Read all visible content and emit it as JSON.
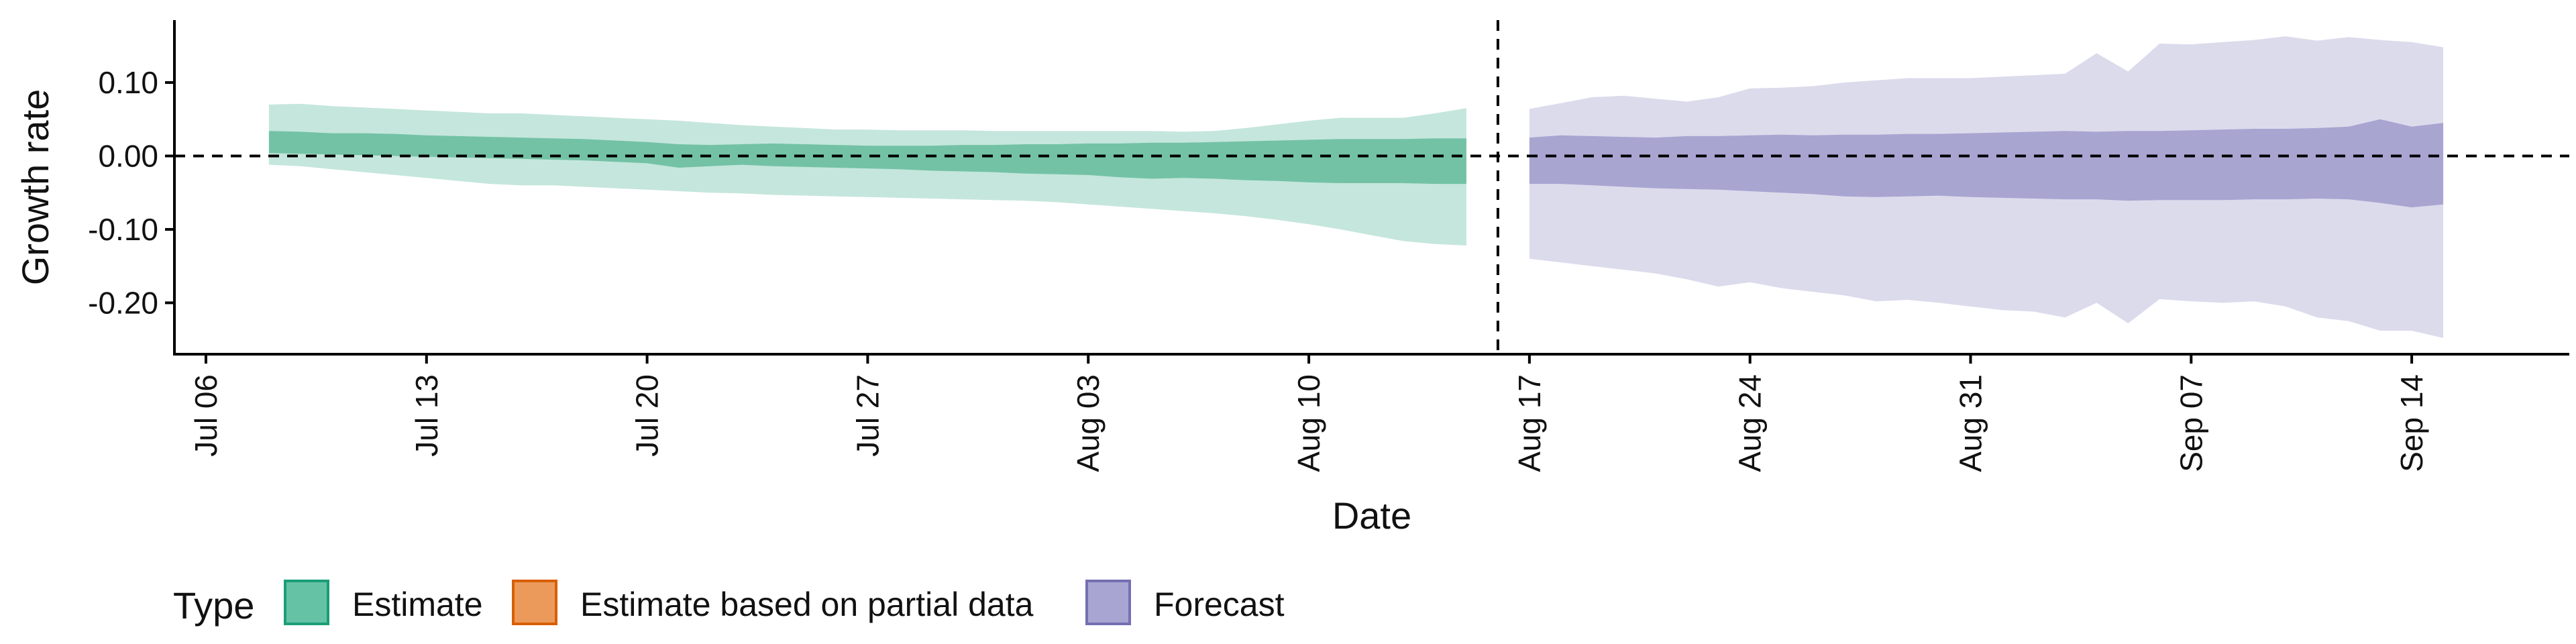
{
  "chart_data": {
    "type": "area",
    "xlabel": "Date",
    "ylabel": "Growth rate",
    "x_tick_labels": [
      "Jul 06",
      "Jul 13",
      "Jul 20",
      "Jul 27",
      "Aug 03",
      "Aug 10",
      "Aug 17",
      "Aug 24",
      "Aug 31",
      "Sep 07",
      "Sep 14"
    ],
    "x_tick_dates": [
      "2020-07-06",
      "2020-07-13",
      "2020-07-20",
      "2020-07-27",
      "2020-08-03",
      "2020-08-10",
      "2020-08-17",
      "2020-08-24",
      "2020-08-31",
      "2020-09-07",
      "2020-09-14"
    ],
    "xlim": [
      "2020-07-05",
      "2020-09-19"
    ],
    "y_ticks": [
      0.1,
      0.0,
      -0.1,
      -0.2
    ],
    "y_tick_labels": [
      "0.10",
      "0.00",
      "-0.10",
      "-0.20"
    ],
    "ylim": [
      -0.27,
      0.185
    ],
    "reference_lines": [
      {
        "axis": "y",
        "value": 0.0,
        "style": "dashed"
      },
      {
        "axis": "x",
        "value": "2020-08-16",
        "style": "dashed"
      }
    ],
    "legend": {
      "title": "Type",
      "position": "bottom-left",
      "entries": [
        {
          "label": "Estimate",
          "fill": "#66c2a5",
          "stroke": "#1b9e77"
        },
        {
          "label": "Estimate based on partial data",
          "fill": "#eb9a5c",
          "stroke": "#d95f02"
        },
        {
          "label": "Forecast",
          "fill": "#a9a5d2",
          "stroke": "#7570b3"
        }
      ]
    },
    "colors": {
      "estimate_outer": "#c5e6dc",
      "estimate_inner": "#73c2a6",
      "forecast_outer": "#dcdbec",
      "forecast_inner": "#a8a5d1"
    },
    "series": [
      {
        "name": "Estimate",
        "x": [
          "2020-07-08",
          "2020-07-09",
          "2020-07-10",
          "2020-07-11",
          "2020-07-12",
          "2020-07-13",
          "2020-07-14",
          "2020-07-15",
          "2020-07-16",
          "2020-07-17",
          "2020-07-18",
          "2020-07-19",
          "2020-07-20",
          "2020-07-21",
          "2020-07-22",
          "2020-07-23",
          "2020-07-24",
          "2020-07-25",
          "2020-07-26",
          "2020-07-27",
          "2020-07-28",
          "2020-07-29",
          "2020-07-30",
          "2020-07-31",
          "2020-08-01",
          "2020-08-02",
          "2020-08-03",
          "2020-08-04",
          "2020-08-05",
          "2020-08-06",
          "2020-08-07",
          "2020-08-08",
          "2020-08-09",
          "2020-08-10",
          "2020-08-11",
          "2020-08-12",
          "2020-08-13",
          "2020-08-14",
          "2020-08-15"
        ],
        "outer_upper": [
          0.07,
          0.071,
          0.068,
          0.066,
          0.064,
          0.062,
          0.06,
          0.058,
          0.058,
          0.056,
          0.054,
          0.052,
          0.05,
          0.048,
          0.045,
          0.042,
          0.04,
          0.038,
          0.036,
          0.036,
          0.035,
          0.035,
          0.035,
          0.034,
          0.034,
          0.034,
          0.034,
          0.034,
          0.034,
          0.033,
          0.034,
          0.038,
          0.043,
          0.048,
          0.052,
          0.052,
          0.052,
          0.058,
          0.065
        ],
        "inner_upper": [
          0.034,
          0.033,
          0.031,
          0.031,
          0.03,
          0.028,
          0.027,
          0.026,
          0.025,
          0.024,
          0.023,
          0.021,
          0.019,
          0.016,
          0.015,
          0.016,
          0.017,
          0.016,
          0.015,
          0.014,
          0.014,
          0.014,
          0.015,
          0.015,
          0.016,
          0.016,
          0.017,
          0.017,
          0.018,
          0.018,
          0.019,
          0.02,
          0.021,
          0.022,
          0.023,
          0.023,
          0.023,
          0.024,
          0.024
        ],
        "inner_lower": [
          0.004,
          0.003,
          0.002,
          0.001,
          0.0,
          -0.001,
          -0.002,
          -0.003,
          -0.004,
          -0.005,
          -0.006,
          -0.008,
          -0.01,
          -0.016,
          -0.014,
          -0.012,
          -0.014,
          -0.015,
          -0.016,
          -0.017,
          -0.018,
          -0.02,
          -0.021,
          -0.022,
          -0.024,
          -0.025,
          -0.026,
          -0.029,
          -0.031,
          -0.03,
          -0.031,
          -0.033,
          -0.034,
          -0.036,
          -0.037,
          -0.037,
          -0.037,
          -0.038,
          -0.038
        ],
        "outer_lower": [
          -0.012,
          -0.014,
          -0.018,
          -0.022,
          -0.026,
          -0.03,
          -0.034,
          -0.038,
          -0.04,
          -0.04,
          -0.042,
          -0.044,
          -0.046,
          -0.048,
          -0.05,
          -0.051,
          -0.053,
          -0.054,
          -0.055,
          -0.056,
          -0.057,
          -0.058,
          -0.059,
          -0.06,
          -0.061,
          -0.063,
          -0.066,
          -0.069,
          -0.072,
          -0.075,
          -0.078,
          -0.082,
          -0.087,
          -0.093,
          -0.1,
          -0.108,
          -0.116,
          -0.12,
          -0.122
        ]
      },
      {
        "name": "Forecast",
        "x": [
          "2020-08-17",
          "2020-08-18",
          "2020-08-19",
          "2020-08-20",
          "2020-08-21",
          "2020-08-22",
          "2020-08-23",
          "2020-08-24",
          "2020-08-25",
          "2020-08-26",
          "2020-08-27",
          "2020-08-28",
          "2020-08-29",
          "2020-08-30",
          "2020-08-31",
          "2020-09-01",
          "2020-09-02",
          "2020-09-03",
          "2020-09-04",
          "2020-09-05",
          "2020-09-06",
          "2020-09-07",
          "2020-09-08",
          "2020-09-09",
          "2020-09-10",
          "2020-09-11",
          "2020-09-12",
          "2020-09-13",
          "2020-09-14",
          "2020-09-15"
        ],
        "outer_upper": [
          0.064,
          0.072,
          0.08,
          0.082,
          0.078,
          0.074,
          0.08,
          0.092,
          0.093,
          0.095,
          0.1,
          0.103,
          0.106,
          0.106,
          0.106,
          0.108,
          0.11,
          0.112,
          0.14,
          0.115,
          0.153,
          0.152,
          0.155,
          0.158,
          0.163,
          0.157,
          0.162,
          0.158,
          0.155,
          0.148
        ],
        "inner_upper": [
          0.025,
          0.028,
          0.027,
          0.026,
          0.025,
          0.027,
          0.027,
          0.028,
          0.029,
          0.028,
          0.029,
          0.029,
          0.03,
          0.03,
          0.031,
          0.032,
          0.033,
          0.034,
          0.033,
          0.034,
          0.034,
          0.035,
          0.036,
          0.037,
          0.037,
          0.038,
          0.04,
          0.05,
          0.04,
          0.045
        ],
        "inner_lower": [
          -0.038,
          -0.038,
          -0.04,
          -0.042,
          -0.044,
          -0.045,
          -0.046,
          -0.048,
          -0.05,
          -0.052,
          -0.055,
          -0.056,
          -0.055,
          -0.054,
          -0.056,
          -0.057,
          -0.058,
          -0.059,
          -0.059,
          -0.061,
          -0.06,
          -0.06,
          -0.06,
          -0.059,
          -0.059,
          -0.058,
          -0.059,
          -0.064,
          -0.07,
          -0.066
        ],
        "outer_lower": [
          -0.14,
          -0.145,
          -0.15,
          -0.155,
          -0.16,
          -0.168,
          -0.178,
          -0.172,
          -0.18,
          -0.185,
          -0.19,
          -0.198,
          -0.196,
          -0.2,
          -0.205,
          -0.21,
          -0.212,
          -0.22,
          -0.2,
          -0.228,
          -0.195,
          -0.198,
          -0.2,
          -0.198,
          -0.205,
          -0.22,
          -0.225,
          -0.238,
          -0.238,
          -0.248
        ]
      }
    ]
  }
}
